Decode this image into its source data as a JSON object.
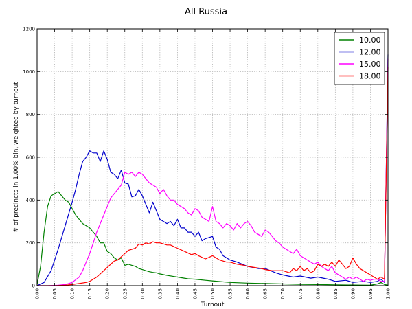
{
  "chart_data": {
    "type": "line",
    "title": "All Russia",
    "xlabel": "Turnout",
    "ylabel": "# of precincts in 1.00% bin, weighted by turnout",
    "xlim": [
      0,
      1
    ],
    "ylim": [
      0,
      1200
    ],
    "xticks": [
      "0.00",
      "0.05",
      "0.10",
      "0.15",
      "0.20",
      "0.25",
      "0.30",
      "0.35",
      "0.40",
      "0.45",
      "0.50",
      "0.55",
      "0.60",
      "0.65",
      "0.70",
      "0.75",
      "0.80",
      "0.85",
      "0.90",
      "0.95",
      "1.00"
    ],
    "yticks": [
      "0",
      "200",
      "400",
      "600",
      "800",
      "1000",
      "1200"
    ],
    "grid": true,
    "legend_position": "top-right",
    "series": [
      {
        "name": "10.00",
        "color": "#008000",
        "x": [
          0.0,
          0.01,
          0.02,
          0.03,
          0.04,
          0.05,
          0.06,
          0.07,
          0.08,
          0.09,
          0.1,
          0.11,
          0.12,
          0.13,
          0.14,
          0.15,
          0.16,
          0.17,
          0.18,
          0.19,
          0.2,
          0.21,
          0.22,
          0.23,
          0.24,
          0.25,
          0.26,
          0.27,
          0.28,
          0.29,
          0.3,
          0.31,
          0.32,
          0.33,
          0.34,
          0.35,
          0.37,
          0.4,
          0.43,
          0.45,
          0.48,
          0.5,
          0.55,
          0.6,
          0.65,
          0.7,
          0.75,
          0.8,
          0.85,
          0.9,
          0.95,
          0.97,
          0.98,
          0.99,
          1.0
        ],
        "values": [
          5,
          90,
          250,
          370,
          420,
          430,
          440,
          420,
          400,
          390,
          360,
          330,
          310,
          290,
          280,
          270,
          250,
          230,
          200,
          200,
          160,
          150,
          130,
          120,
          130,
          95,
          100,
          95,
          90,
          80,
          75,
          70,
          65,
          62,
          60,
          55,
          48,
          40,
          32,
          30,
          25,
          22,
          15,
          12,
          10,
          8,
          6,
          5,
          4,
          3,
          2,
          8,
          15,
          5,
          2
        ]
      },
      {
        "name": "12.00",
        "color": "#0000cc",
        "x": [
          0.0,
          0.02,
          0.04,
          0.06,
          0.08,
          0.1,
          0.11,
          0.12,
          0.13,
          0.14,
          0.15,
          0.16,
          0.17,
          0.18,
          0.19,
          0.2,
          0.21,
          0.22,
          0.23,
          0.24,
          0.25,
          0.26,
          0.27,
          0.28,
          0.29,
          0.3,
          0.31,
          0.32,
          0.33,
          0.34,
          0.35,
          0.36,
          0.37,
          0.38,
          0.39,
          0.4,
          0.41,
          0.42,
          0.43,
          0.44,
          0.45,
          0.46,
          0.47,
          0.48,
          0.49,
          0.5,
          0.51,
          0.52,
          0.53,
          0.55,
          0.57,
          0.6,
          0.63,
          0.65,
          0.68,
          0.7,
          0.73,
          0.75,
          0.78,
          0.8,
          0.83,
          0.85,
          0.88,
          0.9,
          0.93,
          0.95,
          0.97,
          0.98,
          0.99,
          1.0
        ],
        "values": [
          0,
          15,
          70,
          170,
          280,
          390,
          450,
          520,
          580,
          600,
          630,
          620,
          620,
          580,
          630,
          590,
          530,
          520,
          500,
          540,
          480,
          475,
          415,
          420,
          450,
          420,
          380,
          340,
          390,
          350,
          310,
          300,
          290,
          300,
          280,
          310,
          270,
          270,
          250,
          250,
          230,
          250,
          210,
          220,
          225,
          230,
          180,
          170,
          140,
          120,
          110,
          90,
          80,
          80,
          60,
          50,
          40,
          45,
          35,
          40,
          30,
          20,
          25,
          15,
          20,
          15,
          20,
          30,
          15,
          1080
        ]
      },
      {
        "name": "15.00",
        "color": "#ff00ff",
        "x": [
          0.0,
          0.03,
          0.06,
          0.08,
          0.1,
          0.12,
          0.13,
          0.14,
          0.15,
          0.16,
          0.17,
          0.18,
          0.19,
          0.2,
          0.21,
          0.22,
          0.23,
          0.24,
          0.25,
          0.26,
          0.27,
          0.28,
          0.29,
          0.3,
          0.31,
          0.32,
          0.33,
          0.34,
          0.35,
          0.36,
          0.37,
          0.38,
          0.39,
          0.4,
          0.41,
          0.42,
          0.43,
          0.44,
          0.45,
          0.46,
          0.47,
          0.48,
          0.49,
          0.5,
          0.51,
          0.52,
          0.53,
          0.54,
          0.55,
          0.56,
          0.57,
          0.58,
          0.59,
          0.6,
          0.61,
          0.62,
          0.63,
          0.64,
          0.65,
          0.66,
          0.67,
          0.68,
          0.69,
          0.7,
          0.71,
          0.72,
          0.73,
          0.74,
          0.75,
          0.76,
          0.77,
          0.78,
          0.79,
          0.8,
          0.81,
          0.82,
          0.83,
          0.84,
          0.85,
          0.86,
          0.87,
          0.88,
          0.89,
          0.9,
          0.91,
          0.92,
          0.93,
          0.94,
          0.95,
          0.96,
          0.97,
          0.98,
          0.99,
          1.0
        ],
        "values": [
          0,
          0,
          2,
          5,
          15,
          40,
          70,
          110,
          150,
          200,
          250,
          290,
          330,
          370,
          410,
          430,
          450,
          470,
          530,
          520,
          530,
          510,
          530,
          520,
          500,
          480,
          470,
          460,
          430,
          450,
          420,
          400,
          400,
          380,
          370,
          360,
          340,
          330,
          360,
          350,
          320,
          310,
          300,
          370,
          300,
          290,
          270,
          290,
          280,
          260,
          290,
          270,
          290,
          300,
          280,
          250,
          240,
          230,
          260,
          250,
          230,
          210,
          200,
          180,
          170,
          160,
          150,
          170,
          140,
          130,
          120,
          110,
          100,
          110,
          90,
          80,
          70,
          90,
          60,
          50,
          40,
          30,
          40,
          30,
          40,
          30,
          20,
          30,
          25,
          30,
          30,
          20,
          20,
          1060
        ]
      },
      {
        "name": "18.00",
        "color": "#ff0000",
        "x": [
          0.0,
          0.05,
          0.08,
          0.1,
          0.12,
          0.14,
          0.15,
          0.16,
          0.17,
          0.18,
          0.19,
          0.2,
          0.21,
          0.22,
          0.23,
          0.24,
          0.25,
          0.26,
          0.27,
          0.28,
          0.29,
          0.3,
          0.31,
          0.32,
          0.33,
          0.34,
          0.35,
          0.36,
          0.37,
          0.38,
          0.4,
          0.42,
          0.44,
          0.45,
          0.46,
          0.48,
          0.5,
          0.52,
          0.54,
          0.55,
          0.57,
          0.59,
          0.6,
          0.62,
          0.64,
          0.65,
          0.67,
          0.69,
          0.7,
          0.72,
          0.73,
          0.74,
          0.75,
          0.76,
          0.77,
          0.78,
          0.79,
          0.8,
          0.81,
          0.82,
          0.83,
          0.84,
          0.85,
          0.86,
          0.87,
          0.88,
          0.89,
          0.9,
          0.91,
          0.92,
          0.93,
          0.94,
          0.95,
          0.96,
          0.97,
          0.98,
          0.99,
          1.0
        ],
        "values": [
          0,
          0,
          2,
          5,
          10,
          15,
          20,
          30,
          40,
          55,
          70,
          85,
          100,
          115,
          120,
          135,
          150,
          165,
          170,
          175,
          195,
          190,
          200,
          195,
          205,
          200,
          200,
          195,
          190,
          190,
          175,
          160,
          145,
          150,
          140,
          125,
          140,
          120,
          110,
          110,
          100,
          95,
          90,
          85,
          80,
          75,
          70,
          70,
          70,
          60,
          80,
          70,
          90,
          70,
          80,
          60,
          70,
          100,
          90,
          100,
          90,
          110,
          90,
          120,
          100,
          80,
          90,
          130,
          100,
          80,
          70,
          60,
          50,
          40,
          30,
          40,
          30,
          1020
        ]
      }
    ]
  }
}
